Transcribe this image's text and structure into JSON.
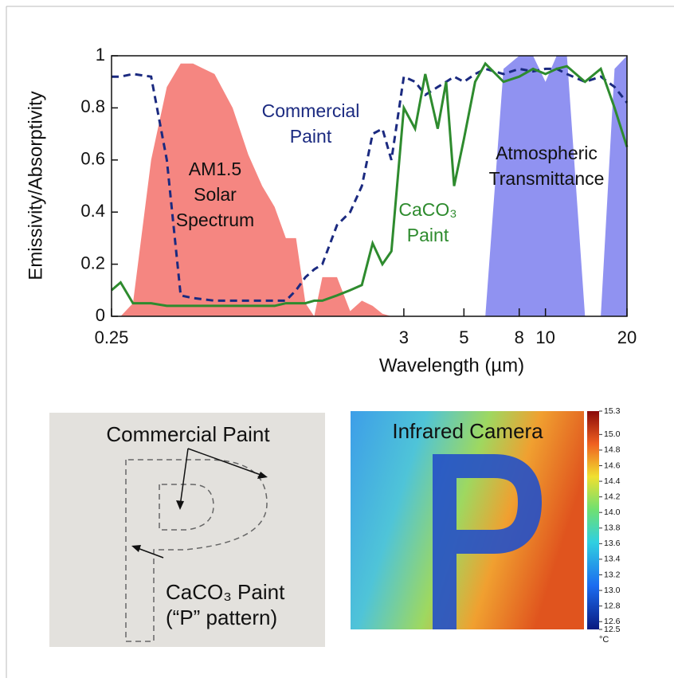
{
  "chart_data": [
    {
      "type": "line",
      "xlabel": "Wavelength (µm)",
      "ylabel": "Emissivity/Absorptivity",
      "xscale": "log",
      "xlim": [
        0.25,
        20
      ],
      "ylim": [
        0,
        1
      ],
      "xticks": [
        0.25,
        3,
        5,
        8,
        10,
        20
      ],
      "yticks": [
        0,
        0.2,
        0.4,
        0.6,
        0.8,
        1
      ],
      "x": [
        0.25,
        0.27,
        0.3,
        0.35,
        0.4,
        0.45,
        0.5,
        0.6,
        0.7,
        0.8,
        0.9,
        1.0,
        1.1,
        1.2,
        1.3,
        1.4,
        1.5,
        1.7,
        1.9,
        2.1,
        2.3,
        2.5,
        2.7,
        3.0,
        3.3,
        3.6,
        4,
        4.3,
        4.6,
        5,
        5.5,
        6,
        7,
        8,
        9,
        10,
        11,
        12,
        14,
        16,
        18,
        20
      ],
      "series": [
        {
          "label": [
            "AM1.5",
            "Solar",
            "Spectrum"
          ],
          "kind": "area",
          "color": "#f4807a",
          "values": [
            0,
            0,
            0.05,
            0.6,
            0.88,
            0.97,
            0.97,
            0.93,
            0.8,
            0.62,
            0.5,
            0.42,
            0.3,
            0.3,
            0.05,
            0,
            0.15,
            0.15,
            0.02,
            0.06,
            0.04,
            0.01,
            0,
            0,
            0,
            0,
            0,
            0,
            0,
            0,
            0,
            0,
            0,
            0,
            0,
            0,
            0,
            0,
            0,
            0,
            0,
            0
          ]
        },
        {
          "label": [
            "Atmospheric",
            "Transmittance"
          ],
          "kind": "area",
          "color": "#8a8cf0",
          "values": [
            0,
            0,
            0,
            0,
            0,
            0,
            0,
            0,
            0,
            0,
            0,
            0,
            0,
            0,
            0,
            0,
            0,
            0,
            0,
            0,
            0,
            0,
            0,
            0,
            0,
            0,
            0,
            0,
            0,
            0,
            0,
            0,
            0.95,
            1,
            1,
            0.9,
            1,
            1,
            0,
            0,
            0.95,
            1
          ]
        },
        {
          "label": [
            "Commercial",
            "Paint"
          ],
          "kind": "line",
          "dashed": true,
          "color": "#1b2a80",
          "values": [
            0.92,
            0.92,
            0.93,
            0.92,
            0.6,
            0.08,
            0.07,
            0.06,
            0.06,
            0.06,
            0.06,
            0.06,
            0.06,
            0.1,
            0.15,
            0.18,
            0.2,
            0.35,
            0.4,
            0.5,
            0.7,
            0.72,
            0.6,
            0.92,
            0.9,
            0.85,
            0.88,
            0.9,
            0.92,
            0.9,
            0.93,
            0.95,
            0.93,
            0.95,
            0.94,
            0.95,
            0.95,
            0.93,
            0.9,
            0.92,
            0.88,
            0.82
          ]
        },
        {
          "label": [
            "CaCO₃",
            "Paint"
          ],
          "kind": "line",
          "color": "#2e8b2e",
          "values": [
            0.1,
            0.13,
            0.05,
            0.05,
            0.04,
            0.04,
            0.04,
            0.04,
            0.04,
            0.04,
            0.04,
            0.04,
            0.05,
            0.05,
            0.05,
            0.06,
            0.06,
            0.08,
            0.1,
            0.12,
            0.28,
            0.2,
            0.25,
            0.8,
            0.72,
            0.93,
            0.72,
            0.9,
            0.5,
            0.68,
            0.9,
            0.97,
            0.9,
            0.92,
            0.95,
            0.93,
            0.95,
            0.96,
            0.9,
            0.95,
            0.8,
            0.65
          ]
        }
      ]
    },
    {
      "type": "colorbar",
      "title": "Infrared Camera",
      "unit": "°C",
      "ylim": [
        12.5,
        15.3
      ],
      "yticks": [
        15.3,
        {
          "value": 15,
          "label": "15.0"
        },
        14.8,
        14.6,
        14.4,
        14.2,
        {
          "value": 14,
          "label": "14.0"
        },
        13.8,
        13.6,
        13.4,
        13.2,
        {
          "value": 13,
          "label": "13.0"
        },
        12.8,
        12.6,
        12.5
      ]
    }
  ],
  "photo": {
    "commercial": "Commercial Paint",
    "caco3": "CaCO₃ Paint",
    "pattern": "(“P” pattern)"
  }
}
